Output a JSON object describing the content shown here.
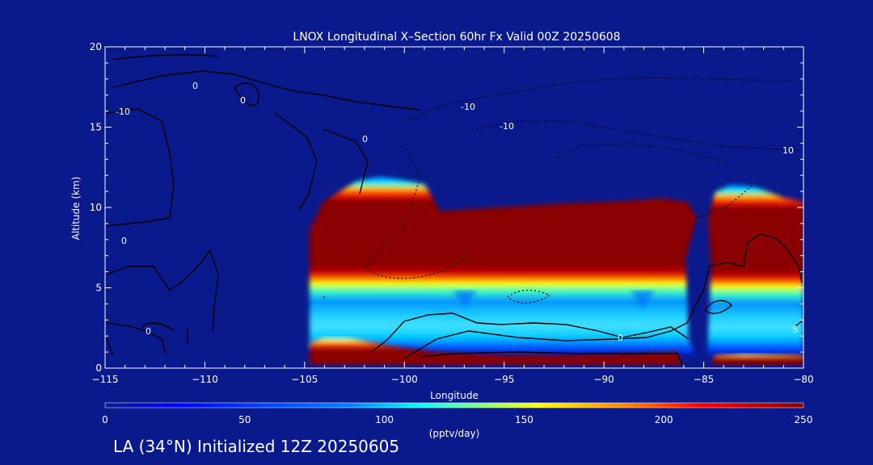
{
  "chart_data": {
    "type": "heatmap",
    "title": "LNOX Longitudinal X–Section 60hr  Fx Valid 00Z 20250608",
    "xlabel": "Longitude",
    "ylabel": "Altitude (km)",
    "xlim": [
      -115,
      -80
    ],
    "ylim": [
      0,
      20
    ],
    "xticks": [
      -115,
      -110,
      -105,
      -100,
      -95,
      -90,
      -85,
      -80
    ],
    "xtick_labels": [
      "−115",
      "−110",
      "−105",
      "−100",
      "−95",
      "−90",
      "−85",
      "−80"
    ],
    "yticks": [
      0,
      5,
      10,
      15,
      20
    ],
    "ytick_labels": [
      "0",
      "5",
      "10",
      "15",
      "20"
    ],
    "colorbar": {
      "label": "(pptv/day)",
      "range": [
        0,
        250
      ],
      "ticks": [
        0,
        50,
        100,
        150,
        200,
        250
      ],
      "tick_labels": [
        "0",
        "50",
        "100",
        "150",
        "200",
        "250"
      ],
      "colors": [
        "#0a1a8c",
        "#0000ff",
        "#0080ff",
        "#00ffff",
        "#ffff00",
        "#ff8000",
        "#ff0000",
        "#8b0000"
      ]
    },
    "bands": [
      {
        "lon_start": -104.7,
        "lon_end": -86.0,
        "upper_top_km": 11.5,
        "upper_bottom_km": 6.5,
        "upper_value": 250,
        "mid_value": 100,
        "mid_bottom_km": 3.0,
        "low_top_km": 1.6,
        "low_value": 250
      },
      {
        "lon_start": -84.5,
        "lon_end": -80,
        "upper_top_km": 11.2,
        "upper_bottom_km": 6.2,
        "upper_value": 250,
        "mid_value": 100,
        "mid_bottom_km": 3.0,
        "low_top_km": 0.8,
        "low_value": 250
      }
    ],
    "contour_labels": [
      "0",
      "0",
      "-10",
      "-10",
      "0",
      "0",
      "0",
      "10",
      "-10",
      "0",
      "5"
    ]
  },
  "footnote": "LA (34°N) Initialized 12Z 20250605"
}
